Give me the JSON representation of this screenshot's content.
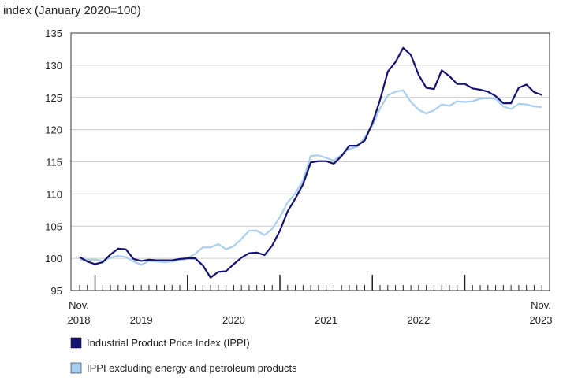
{
  "chart_data": {
    "type": "line",
    "ylabel": "index (January 2020=100)",
    "ylim": [
      95,
      135
    ],
    "yticks": [
      95,
      100,
      105,
      110,
      115,
      120,
      125,
      130,
      135
    ],
    "grid": true,
    "legend_position": "bottom-left",
    "x_start_label": [
      "Nov.",
      "2018"
    ],
    "x_end_label": [
      "Nov.",
      "2023"
    ],
    "year_labels": [
      "2019",
      "2020",
      "2021",
      "2022"
    ],
    "x": [
      "2018-11",
      "2018-12",
      "2019-01",
      "2019-02",
      "2019-03",
      "2019-04",
      "2019-05",
      "2019-06",
      "2019-07",
      "2019-08",
      "2019-09",
      "2019-10",
      "2019-11",
      "2019-12",
      "2020-01",
      "2020-02",
      "2020-03",
      "2020-04",
      "2020-05",
      "2020-06",
      "2020-07",
      "2020-08",
      "2020-09",
      "2020-10",
      "2020-11",
      "2020-12",
      "2021-01",
      "2021-02",
      "2021-03",
      "2021-04",
      "2021-05",
      "2021-06",
      "2021-07",
      "2021-08",
      "2021-09",
      "2021-10",
      "2021-11",
      "2021-12",
      "2022-01",
      "2022-02",
      "2022-03",
      "2022-04",
      "2022-05",
      "2022-06",
      "2022-07",
      "2022-08",
      "2022-09",
      "2022-10",
      "2022-11",
      "2022-12",
      "2023-01",
      "2023-02",
      "2023-03",
      "2023-04",
      "2023-05",
      "2023-06",
      "2023-07",
      "2023-08",
      "2023-09",
      "2023-10",
      "2023-11"
    ],
    "series": [
      {
        "name": "Industrial Product Price Index (IPPI)",
        "color": "#141270",
        "values": [
          100.2,
          99.5,
          99.1,
          99.4,
          100.6,
          101.5,
          101.4,
          99.9,
          99.6,
          99.8,
          99.7,
          99.7,
          99.7,
          99.9,
          100.0,
          100.0,
          98.9,
          97.0,
          97.9,
          98.0,
          99.1,
          100.1,
          100.8,
          100.9,
          100.5,
          102.0,
          104.3,
          107.3,
          109.3,
          111.5,
          114.9,
          115.1,
          115.1,
          114.7,
          115.9,
          117.5,
          117.5,
          118.3,
          121.0,
          124.6,
          129.0,
          130.5,
          132.7,
          131.6,
          128.5,
          126.5,
          126.3,
          129.2,
          128.3,
          127.1,
          127.1,
          126.4,
          126.2,
          125.9,
          125.2,
          124.1,
          124.1,
          126.5,
          127.0,
          125.8,
          125.4
        ]
      },
      {
        "name": "IPPI excluding energy and petroleum products",
        "color": "#a8cef0",
        "values": [
          99.7,
          99.8,
          99.8,
          99.6,
          100.1,
          100.4,
          100.2,
          99.5,
          99.0,
          99.6,
          99.5,
          99.4,
          99.5,
          99.7,
          100.0,
          100.7,
          101.7,
          101.7,
          102.2,
          101.4,
          101.9,
          103.0,
          104.3,
          104.3,
          103.6,
          104.6,
          106.4,
          108.7,
          110.1,
          112.1,
          115.9,
          116.0,
          115.6,
          115.2,
          116.1,
          117.0,
          117.3,
          118.8,
          120.6,
          123.3,
          125.3,
          125.9,
          126.1,
          124.3,
          123.1,
          122.5,
          123.0,
          123.9,
          123.7,
          124.4,
          124.3,
          124.4,
          124.8,
          124.9,
          124.8,
          123.6,
          123.2,
          124.0,
          123.9,
          123.6,
          123.5
        ]
      }
    ]
  }
}
